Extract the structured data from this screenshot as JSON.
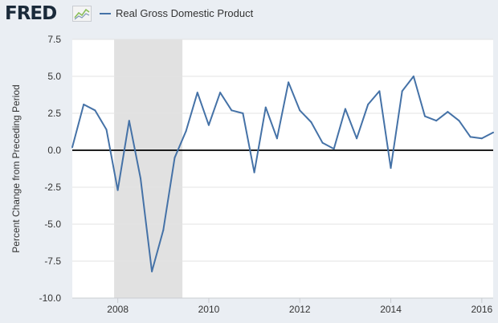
{
  "header": {
    "logo_text": "FRED",
    "legend_label": "Real Gross Domestic Product"
  },
  "colors": {
    "series": "#4572a7",
    "recession": "#e1e1e1",
    "background": "#eaeef3",
    "plot": "#ffffff"
  },
  "chart_data": {
    "type": "line",
    "title": "",
    "xlabel": "",
    "ylabel": "Percent Change from Preceding Period",
    "ylim": [
      -10.0,
      7.5
    ],
    "xlim": [
      2007.0,
      2016.25
    ],
    "yticks": [
      {
        "value": 7.5,
        "label": "7.5"
      },
      {
        "value": 5.0,
        "label": "5.0"
      },
      {
        "value": 2.5,
        "label": "2.5"
      },
      {
        "value": 0.0,
        "label": "0.0"
      },
      {
        "value": -2.5,
        "label": "-2.5"
      },
      {
        "value": -5.0,
        "label": "-5.0"
      },
      {
        "value": -7.5,
        "label": "-7.5"
      },
      {
        "value": -10.0,
        "label": "-10.0"
      }
    ],
    "xticks": [
      {
        "value": 2008,
        "label": "2008"
      },
      {
        "value": 2010,
        "label": "2010"
      },
      {
        "value": 2012,
        "label": "2012"
      },
      {
        "value": 2014,
        "label": "2014"
      },
      {
        "value": 2016,
        "label": "2016"
      }
    ],
    "recessions": [
      {
        "start": 2007.92,
        "end": 2009.42
      }
    ],
    "series": [
      {
        "name": "Real Gross Domestic Product",
        "x": [
          "2007-01-01",
          "2007-04-01",
          "2007-07-01",
          "2007-10-01",
          "2008-01-01",
          "2008-04-01",
          "2008-07-01",
          "2008-10-01",
          "2009-01-01",
          "2009-04-01",
          "2009-07-01",
          "2009-10-01",
          "2010-01-01",
          "2010-04-01",
          "2010-07-01",
          "2010-10-01",
          "2011-01-01",
          "2011-04-01",
          "2011-07-01",
          "2011-10-01",
          "2012-01-01",
          "2012-04-01",
          "2012-07-01",
          "2012-10-01",
          "2013-01-01",
          "2013-04-01",
          "2013-07-01",
          "2013-10-01",
          "2014-01-01",
          "2014-04-01",
          "2014-07-01",
          "2014-10-01",
          "2015-01-01",
          "2015-04-01",
          "2015-07-01",
          "2015-10-01",
          "2016-01-01",
          "2016-04-01"
        ],
        "values": [
          0.2,
          3.1,
          2.7,
          1.4,
          -2.7,
          2.0,
          -1.9,
          -8.2,
          -5.4,
          -0.5,
          1.3,
          3.9,
          1.7,
          3.9,
          2.7,
          2.5,
          -1.5,
          2.9,
          0.8,
          4.6,
          2.7,
          1.9,
          0.5,
          0.1,
          2.8,
          0.8,
          3.1,
          4.0,
          -1.2,
          4.0,
          5.0,
          2.3,
          2.0,
          2.6,
          2.0,
          0.9,
          0.8,
          1.2
        ]
      }
    ]
  }
}
